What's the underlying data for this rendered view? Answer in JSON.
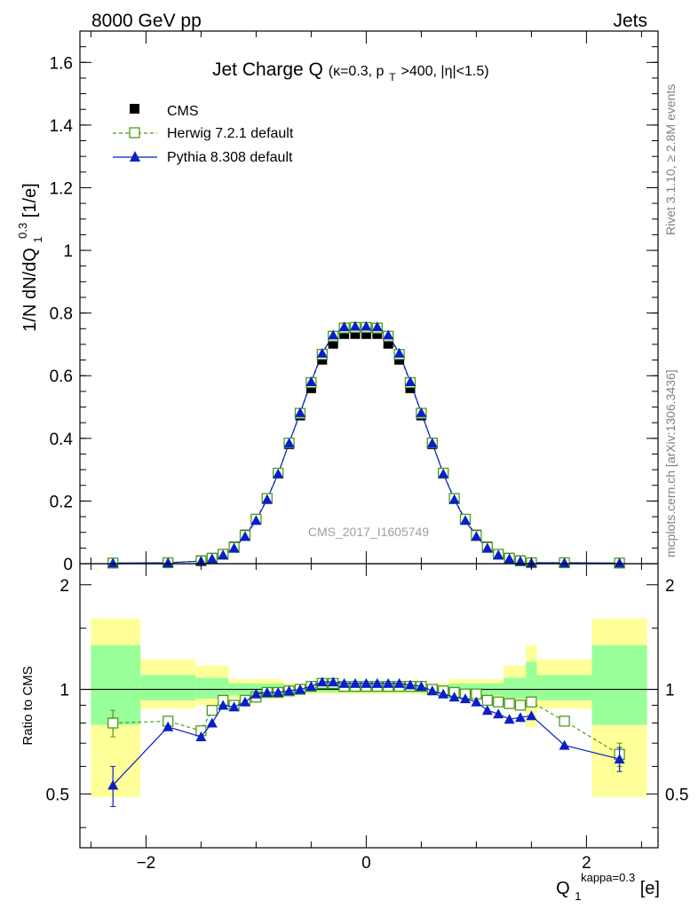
{
  "header": {
    "left_label": "8000 GeV pp",
    "right_label": "Jets"
  },
  "side_labels": {
    "rivet": "Rivet 3.1.10, ≥ 2.8M events",
    "mcplots": "mcplots.cern.ch [arXiv:1306.3436]"
  },
  "watermark": "CMS_2017_I1605749",
  "chart_data": [
    {
      "type": "line",
      "title": "Jet Charge Q (κ=0.3, p_T>400, |η|<1.5)",
      "title_parts": {
        "main": "Jet Charge Q",
        "kappa": "(κ=0.3, p",
        "sub": "T",
        "rest": ">400, |η|<1.5)"
      },
      "ylabel": "1/N dN/dQ_1^0.3 [1/e]",
      "ylabel_parts": {
        "main": "1/N dN/dQ",
        "sub": "1",
        "sup": "0.3",
        "unit": " [1/e]"
      },
      "xlim": [
        -2.6,
        2.65
      ],
      "ylim": [
        0,
        1.7
      ],
      "yticks": [
        "0",
        "0.2",
        "0.4",
        "0.6",
        "0.8",
        "1",
        "1.2",
        "1.4",
        "1.6"
      ],
      "yticks_values": [
        0,
        0.2,
        0.4,
        0.6,
        0.8,
        1.0,
        1.2,
        1.4,
        1.6
      ],
      "legend_position": "top-left",
      "x": [
        -2.3,
        -1.8,
        -1.5,
        -1.4,
        -1.3,
        -1.2,
        -1.1,
        -1.0,
        -0.9,
        -0.8,
        -0.7,
        -0.6,
        -0.5,
        -0.4,
        -0.3,
        -0.2,
        -0.1,
        0.0,
        0.1,
        0.2,
        0.3,
        0.4,
        0.5,
        0.6,
        0.7,
        0.8,
        0.9,
        1.0,
        1.1,
        1.2,
        1.3,
        1.4,
        1.5,
        1.8,
        2.3
      ],
      "series": [
        {
          "name": "CMS",
          "color": "#000000",
          "marker": "square-filled",
          "values": [
            0.003,
            0.004,
            0.011,
            0.019,
            0.031,
            0.055,
            0.093,
            0.143,
            0.207,
            0.288,
            0.381,
            0.473,
            0.56,
            0.651,
            0.702,
            0.733,
            0.733,
            0.733,
            0.733,
            0.702,
            0.651,
            0.56,
            0.473,
            0.381,
            0.288,
            0.207,
            0.143,
            0.093,
            0.055,
            0.031,
            0.019,
            0.011,
            0.004,
            0.004,
            0.003
          ]
        },
        {
          "name": "Herwig 7.2.1 default",
          "color": "#4a9a1c",
          "marker": "square-open",
          "dash": "4,3",
          "values": [
            0.002,
            0.003,
            0.009,
            0.017,
            0.03,
            0.052,
            0.09,
            0.142,
            0.208,
            0.289,
            0.385,
            0.48,
            0.578,
            0.668,
            0.726,
            0.752,
            0.754,
            0.754,
            0.752,
            0.726,
            0.668,
            0.578,
            0.48,
            0.385,
            0.289,
            0.208,
            0.142,
            0.09,
            0.052,
            0.03,
            0.017,
            0.009,
            0.003,
            0.003,
            0.002
          ]
        },
        {
          "name": "Pythia 8.308 default",
          "color": "#0a1fc8",
          "marker": "triangle-filled",
          "values": [
            0.002,
            0.003,
            0.008,
            0.016,
            0.028,
            0.05,
            0.087,
            0.138,
            0.205,
            0.287,
            0.385,
            0.482,
            0.581,
            0.672,
            0.73,
            0.756,
            0.758,
            0.758,
            0.756,
            0.73,
            0.672,
            0.581,
            0.482,
            0.385,
            0.287,
            0.205,
            0.138,
            0.087,
            0.05,
            0.028,
            0.016,
            0.008,
            0.003,
            0.003,
            0.002
          ]
        }
      ]
    },
    {
      "type": "line",
      "ylabel": "Ratio to CMS",
      "xlabel": "Q_1^kappa=0.3 [e]",
      "xlabel_parts": {
        "main": "Q",
        "sub": "1",
        "sup": "kappa=0.3",
        "unit": " [e]"
      },
      "xlim": [
        -2.6,
        2.65
      ],
      "ylim": [
        0.35,
        2.3
      ],
      "xticks": [
        "−2",
        "0",
        "2"
      ],
      "xticks_values": [
        -2,
        0,
        2
      ],
      "yticks": [
        "0.5",
        "1",
        "2"
      ],
      "yticks_values": [
        0.5,
        1,
        2
      ],
      "reference_line": 1,
      "uncertainty_bands": [
        {
          "x": [
            -2.5,
            -2.05
          ],
          "yellow": [
            0.49,
            1.6
          ],
          "green": [
            0.79,
            1.34
          ]
        },
        {
          "x": [
            -2.05,
            -1.55
          ],
          "yellow": [
            0.88,
            1.22
          ],
          "green": [
            0.93,
            1.1
          ]
        },
        {
          "x": [
            -1.55,
            -1.25
          ],
          "yellow": [
            0.9,
            1.17
          ],
          "green": [
            0.94,
            1.08
          ]
        },
        {
          "x": [
            -1.25,
            -0.75
          ],
          "yellow": [
            0.94,
            1.07
          ],
          "green": [
            0.96,
            1.04
          ]
        },
        {
          "x": [
            -0.75,
            0.75
          ],
          "yellow": [
            0.97,
            1.04
          ],
          "green": [
            0.98,
            1.02
          ]
        },
        {
          "x": [
            0.75,
            1.25
          ],
          "yellow": [
            0.94,
            1.07
          ],
          "green": [
            0.96,
            1.04
          ]
        },
        {
          "x": [
            1.25,
            1.45
          ],
          "yellow": [
            0.9,
            1.17
          ],
          "green": [
            0.94,
            1.08
          ]
        },
        {
          "x": [
            1.45,
            1.55
          ],
          "yellow": [
            0.78,
            1.34
          ],
          "green": [
            0.9,
            1.2
          ]
        },
        {
          "x": [
            1.55,
            2.05
          ],
          "yellow": [
            0.88,
            1.22
          ],
          "green": [
            0.93,
            1.1
          ]
        },
        {
          "x": [
            2.05,
            2.55
          ],
          "yellow": [
            0.49,
            1.6
          ],
          "green": [
            0.79,
            1.34
          ]
        }
      ],
      "x": [
        -2.3,
        -1.8,
        -1.5,
        -1.4,
        -1.3,
        -1.2,
        -1.1,
        -1.0,
        -0.9,
        -0.8,
        -0.7,
        -0.6,
        -0.5,
        -0.4,
        -0.3,
        -0.2,
        -0.1,
        0.0,
        0.1,
        0.2,
        0.3,
        0.4,
        0.5,
        0.6,
        0.7,
        0.8,
        0.9,
        1.0,
        1.1,
        1.2,
        1.3,
        1.4,
        1.5,
        1.8,
        2.3
      ],
      "series": [
        {
          "name": "Herwig 7.2.1 default",
          "color": "#4a9a1c",
          "marker": "square-open",
          "dash": "4,3",
          "values": [
            0.8,
            0.81,
            0.76,
            0.87,
            0.93,
            0.9,
            0.93,
            0.95,
            0.98,
            0.98,
            0.99,
            1.0,
            1.02,
            1.04,
            1.04,
            1.02,
            1.02,
            1.02,
            1.02,
            1.02,
            1.02,
            1.02,
            1.02,
            1.0,
            0.99,
            0.98,
            0.97,
            0.97,
            0.93,
            0.92,
            0.91,
            0.9,
            0.92,
            0.81,
            0.65
          ],
          "errors": [
            [
              0,
              0.07
            ],
            [
              34,
              0.05
            ]
          ]
        },
        {
          "name": "Pythia 8.308 default",
          "color": "#0a1fc8",
          "marker": "triangle-filled",
          "values": [
            0.53,
            0.78,
            0.73,
            0.8,
            0.9,
            0.89,
            0.92,
            0.97,
            0.98,
            0.98,
            0.99,
            1.0,
            1.02,
            1.05,
            1.05,
            1.04,
            1.04,
            1.04,
            1.04,
            1.04,
            1.04,
            1.03,
            1.02,
            0.99,
            0.97,
            0.95,
            0.94,
            0.92,
            0.87,
            0.85,
            0.82,
            0.83,
            0.84,
            0.69,
            0.63
          ],
          "errors": [
            [
              0,
              0.07
            ],
            [
              34,
              0.05
            ]
          ]
        }
      ]
    }
  ]
}
